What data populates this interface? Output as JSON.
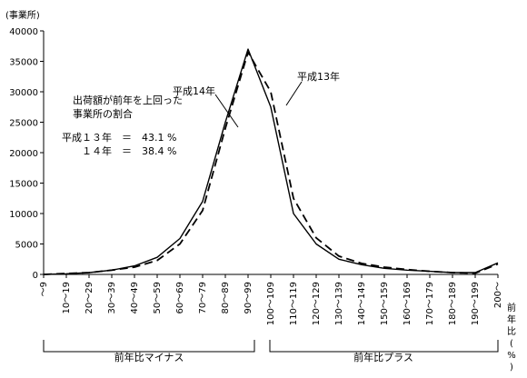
{
  "chart_data": {
    "type": "line",
    "y_unit_label": "(事業所)",
    "x_unit_label": "前年比(%)",
    "ylim": [
      0,
      40000
    ],
    "y_ticks": [
      0,
      5000,
      10000,
      15000,
      20000,
      25000,
      30000,
      35000,
      40000
    ],
    "categories": [
      "～9",
      "10～19",
      "20～29",
      "30～39",
      "40～49",
      "50～59",
      "60～69",
      "70～79",
      "80～89",
      "90～99",
      "100～109",
      "110～119",
      "120～129",
      "130～139",
      "140～149",
      "150～159",
      "160～169",
      "170～179",
      "180～189",
      "190～199",
      "200～"
    ],
    "series": [
      {
        "name": "平成13年",
        "style": "dashed",
        "values": [
          0,
          150,
          300,
          700,
          1200,
          2300,
          5000,
          10500,
          24000,
          36500,
          30000,
          12500,
          6000,
          3000,
          1800,
          1200,
          800,
          500,
          300,
          200,
          1700
        ]
      },
      {
        "name": "平成14年",
        "style": "solid",
        "values": [
          0,
          100,
          300,
          700,
          1400,
          2800,
          5900,
          12000,
          25000,
          37000,
          27500,
          10000,
          5000,
          2500,
          1600,
          1000,
          700,
          500,
          300,
          300,
          1900
        ]
      }
    ],
    "group_labels": [
      "前年比マイナス",
      "前年比プラス"
    ],
    "annotation": {
      "title_line1": "出荷額が前年を上回った",
      "title_line2": "事業所の割合",
      "row1": "平成１３年　＝　43.1 %",
      "row2": "　　１４年　＝　38.4 %"
    },
    "grid": false,
    "legend": "inline labels"
  }
}
